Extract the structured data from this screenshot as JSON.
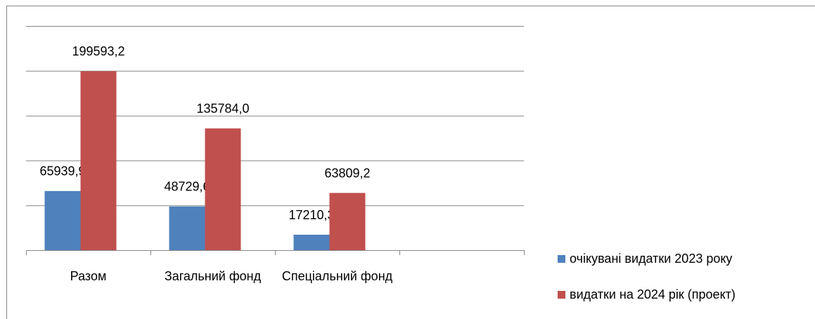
{
  "chart_data": {
    "type": "bar",
    "categories": [
      "Разом",
      "Загальний фонд",
      "Спеціальний фонд",
      null
    ],
    "series": [
      {
        "name": "очікувані видатки 2023 року",
        "color": "#4f81bd",
        "values": [
          65939.9,
          48729.6,
          17210.3,
          null
        ],
        "value_labels": [
          "65939,9",
          "48729,6",
          "17210,3",
          null
        ]
      },
      {
        "name": "видатки на 2024 рік (проект)",
        "color": "#c0504d",
        "values": [
          199593.2,
          135784.0,
          63809.2,
          null
        ],
        "value_labels": [
          "199593,2",
          "135784,0",
          "63809,2",
          null
        ]
      }
    ],
    "ylim": [
      0,
      250000
    ],
    "yticks": [
      0,
      50000,
      100000,
      150000,
      200000,
      250000
    ],
    "grid": true,
    "legend": "right"
  }
}
